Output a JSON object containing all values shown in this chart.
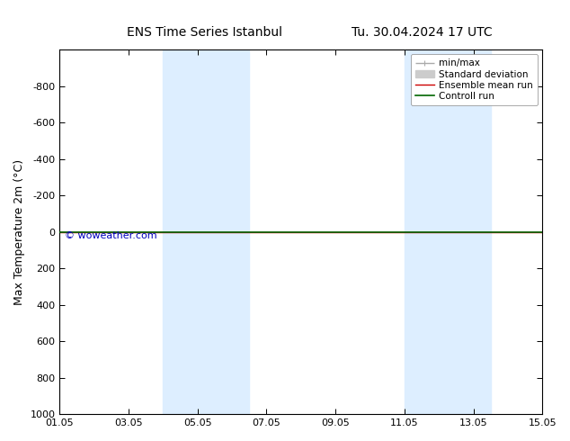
{
  "title_left": "ENS Time Series Istanbul",
  "title_right": "Tu. 30.04.2024 17 UTC",
  "ylabel": "Max Temperature 2m (°C)",
  "watermark": "© woweather.com",
  "ylim_bottom": 1000,
  "ylim_top": -1000,
  "yticks": [
    -800,
    -600,
    -400,
    -200,
    0,
    200,
    400,
    600,
    800,
    1000
  ],
  "xtick_labels": [
    "01.05",
    "03.05",
    "05.05",
    "07.05",
    "09.05",
    "11.05",
    "13.05",
    "15.05"
  ],
  "xtick_positions": [
    0,
    2,
    4,
    6,
    8,
    10,
    12,
    14
  ],
  "x_num_days": 14,
  "shaded_bands": [
    {
      "x_start": 3,
      "x_end": 5.5,
      "color": "#ddeeff"
    },
    {
      "x_start": 10,
      "x_end": 12.5,
      "color": "#ddeeff"
    }
  ],
  "control_run_y": 0,
  "ensemble_mean_y": 0,
  "legend_entries": [
    {
      "label": "min/max",
      "color": "#aaaaaa",
      "lw": 1.0
    },
    {
      "label": "Standard deviation",
      "color": "#cccccc",
      "lw": 6
    },
    {
      "label": "Ensemble mean run",
      "color": "#cc0000",
      "lw": 1.0
    },
    {
      "label": "Controll run",
      "color": "#006600",
      "lw": 1.2
    }
  ],
  "background_color": "#ffffff",
  "plot_bg_color": "#ffffff",
  "title_fontsize": 10,
  "axis_label_fontsize": 9,
  "tick_fontsize": 8,
  "legend_fontsize": 7.5,
  "watermark_color": "#0000bb",
  "watermark_fontsize": 8
}
